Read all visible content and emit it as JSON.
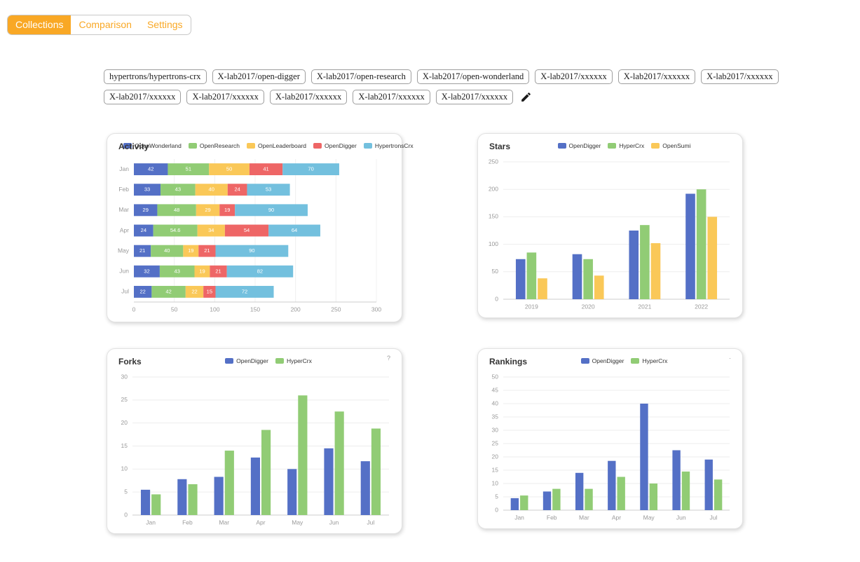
{
  "colors": {
    "accent": "#F9A825"
  },
  "tabs": [
    {
      "label": "Collections",
      "active": true
    },
    {
      "label": "Comparison",
      "active": false
    },
    {
      "label": "Settings",
      "active": false
    }
  ],
  "collection": {
    "repos": [
      "hypertrons/hypertrons-crx",
      "X-lab2017/open-digger",
      "X-lab2017/open-research",
      "X-lab2017/open-wonderland",
      "X-lab2017/xxxxxx",
      "X-lab2017/xxxxxx",
      "X-lab2017/xxxxxx",
      "X-lab2017/xxxxxx",
      "X-lab2017/xxxxxx",
      "X-lab2017/xxxxxx",
      "X-lab2017/xxxxxx",
      "X-lab2017/xxxxxx"
    ],
    "edit_button": {
      "icon": "pencil"
    }
  },
  "chart_data": [
    {
      "id": "activity",
      "type": "bar",
      "orientation": "horizontal",
      "stacked": true,
      "title": "Activity",
      "categories": [
        "Jan",
        "Feb",
        "Mar",
        "Apr",
        "May",
        "Jun",
        "Jul"
      ],
      "series": [
        {
          "name": "OpenWonderland",
          "color": "#5470c6",
          "values": [
            42,
            33,
            29,
            24,
            21,
            32,
            22
          ]
        },
        {
          "name": "OpenResearch",
          "color": "#91cc75",
          "values": [
            51,
            43,
            48,
            54.6,
            40,
            43,
            42
          ]
        },
        {
          "name": "OpenLeaderboard",
          "color": "#fac858",
          "values": [
            50,
            40,
            29,
            34,
            19,
            19,
            22
          ]
        },
        {
          "name": "OpenDigger",
          "color": "#ee6666",
          "values": [
            41,
            24,
            19,
            54,
            21,
            21,
            15
          ]
        },
        {
          "name": "HypertronsCrx",
          "color": "#73c0de",
          "values": [
            70,
            53,
            90,
            64,
            90,
            82,
            72
          ]
        }
      ],
      "xlim": [
        0,
        300
      ],
      "xticks": [
        0,
        50,
        100,
        150,
        200,
        250,
        300
      ],
      "show_value_labels": true,
      "grid": true,
      "legend_position": "top"
    },
    {
      "id": "stars",
      "type": "bar",
      "orientation": "vertical",
      "stacked": false,
      "title": "Stars",
      "categories": [
        "2019",
        "2020",
        "2021",
        "2022"
      ],
      "series": [
        {
          "name": "OpenDigger",
          "color": "#5470c6",
          "values": [
            73,
            82,
            125,
            192
          ]
        },
        {
          "name": "HyperCrx",
          "color": "#91cc75",
          "values": [
            85,
            73,
            135,
            200
          ]
        },
        {
          "name": "OpenSumi",
          "color": "#fac858",
          "values": [
            38,
            43,
            102,
            150
          ]
        }
      ],
      "ylim": [
        0,
        250
      ],
      "ytick_step": 50,
      "grid": true,
      "legend_position": "top"
    },
    {
      "id": "forks",
      "type": "bar",
      "orientation": "vertical",
      "stacked": false,
      "title": "Forks",
      "corner_mark": "?",
      "categories": [
        "Jan",
        "Feb",
        "Mar",
        "Apr",
        "May",
        "Jun",
        "Jul"
      ],
      "series": [
        {
          "name": "OpenDigger",
          "color": "#5470c6",
          "values": [
            5.5,
            7.8,
            8.3,
            12.5,
            10,
            14.5,
            11.7
          ]
        },
        {
          "name": "HyperCrx",
          "color": "#91cc75",
          "values": [
            4.5,
            6.7,
            14,
            18.5,
            26,
            22.5,
            18.8
          ]
        }
      ],
      "ylim": [
        0,
        30
      ],
      "ytick_step": 5,
      "grid": true,
      "legend_position": "top"
    },
    {
      "id": "rankings",
      "type": "bar",
      "orientation": "vertical",
      "stacked": false,
      "title": "Rankings",
      "corner_mark": "·",
      "categories": [
        "Jan",
        "Feb",
        "Mar",
        "Apr",
        "May",
        "Jun",
        "Jul"
      ],
      "series": [
        {
          "name": "OpenDigger",
          "color": "#5470c6",
          "values": [
            4.5,
            7,
            14,
            18.5,
            40,
            22.5,
            19
          ]
        },
        {
          "name": "HyperCrx",
          "color": "#91cc75",
          "values": [
            5.5,
            8,
            8,
            12.5,
            10,
            14.5,
            11.5
          ]
        }
      ],
      "ylim": [
        0,
        50
      ],
      "ytick_step": 5,
      "grid": true,
      "legend_position": "top"
    }
  ]
}
